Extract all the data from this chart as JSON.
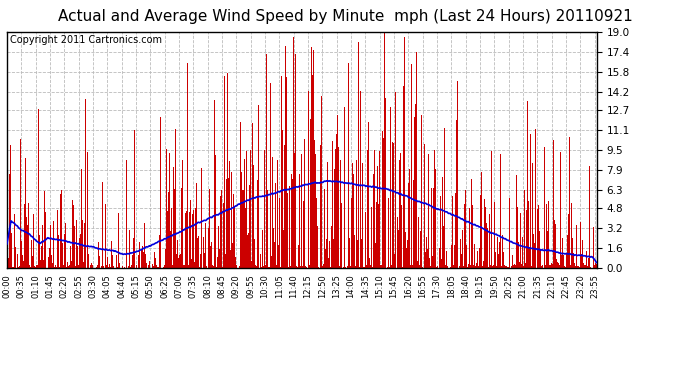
{
  "title": "Actual and Average Wind Speed by Minute  mph (Last 24 Hours) 20110921",
  "copyright": "Copyright 2011 Cartronics.com",
  "yticks": [
    0.0,
    1.6,
    3.2,
    4.8,
    6.3,
    7.9,
    9.5,
    11.1,
    12.7,
    14.2,
    15.8,
    17.4,
    19.0
  ],
  "ymax": 19.0,
  "ymin": 0.0,
  "bar_color": "#cc0000",
  "line_color": "#0000dd",
  "background_color": "#ffffff",
  "grid_color": "#bbbbbb",
  "title_fontsize": 11,
  "copyright_fontsize": 7,
  "num_minutes": 1440,
  "tick_step": 35
}
